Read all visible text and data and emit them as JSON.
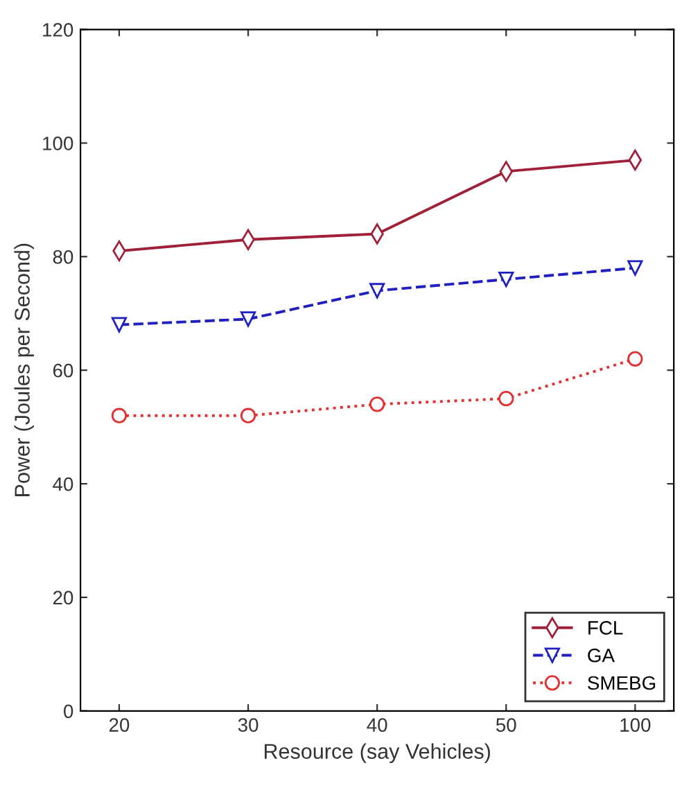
{
  "chart_data": {
    "type": "line",
    "xlabel": "Resource (say Vehicles)",
    "ylabel": "Power (Joules per Second)",
    "categories": [
      "20",
      "30",
      "40",
      "50",
      "100"
    ],
    "ylim": [
      0,
      120
    ],
    "yticks": [
      0,
      20,
      40,
      60,
      80,
      100,
      120
    ],
    "grid": false,
    "legend": "bottom right",
    "series": [
      {
        "name": "FCL",
        "color": "#a0203a",
        "values": [
          81,
          83,
          84,
          95,
          97
        ],
        "marker": "diamond",
        "line_style": "solid"
      },
      {
        "name": "GA",
        "color": "#2020c0",
        "values": [
          68,
          69,
          74,
          76,
          78
        ],
        "marker": "triangle",
        "line_style": "dashed"
      },
      {
        "name": "SMEBG",
        "color": "#e03030",
        "values": [
          52,
          52,
          54,
          55,
          62
        ],
        "marker": "circle",
        "line_style": "dotted"
      }
    ]
  }
}
